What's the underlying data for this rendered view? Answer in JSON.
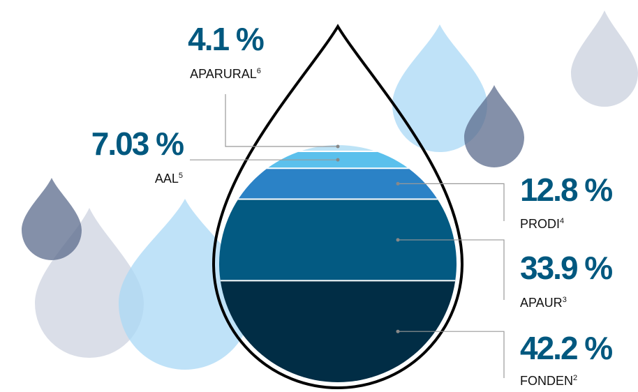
{
  "chart_data": {
    "type": "drop-stack",
    "categories": [
      "FONDEN",
      "APAUR",
      "PRODI",
      "AAL",
      "APARURAL"
    ],
    "footnotes": [
      "2",
      "3",
      "4",
      "5",
      "6"
    ],
    "values": [
      42.2,
      33.9,
      12.8,
      7.03,
      4.1
    ],
    "value_labels": [
      "42.2 %",
      "33.9 %",
      "12.8 %",
      "7.03 %",
      "4.1 %"
    ],
    "colors": [
      "#012d45",
      "#035a82",
      "#2b82c6",
      "#5bc0ec",
      "#bde3f6"
    ]
  }
}
